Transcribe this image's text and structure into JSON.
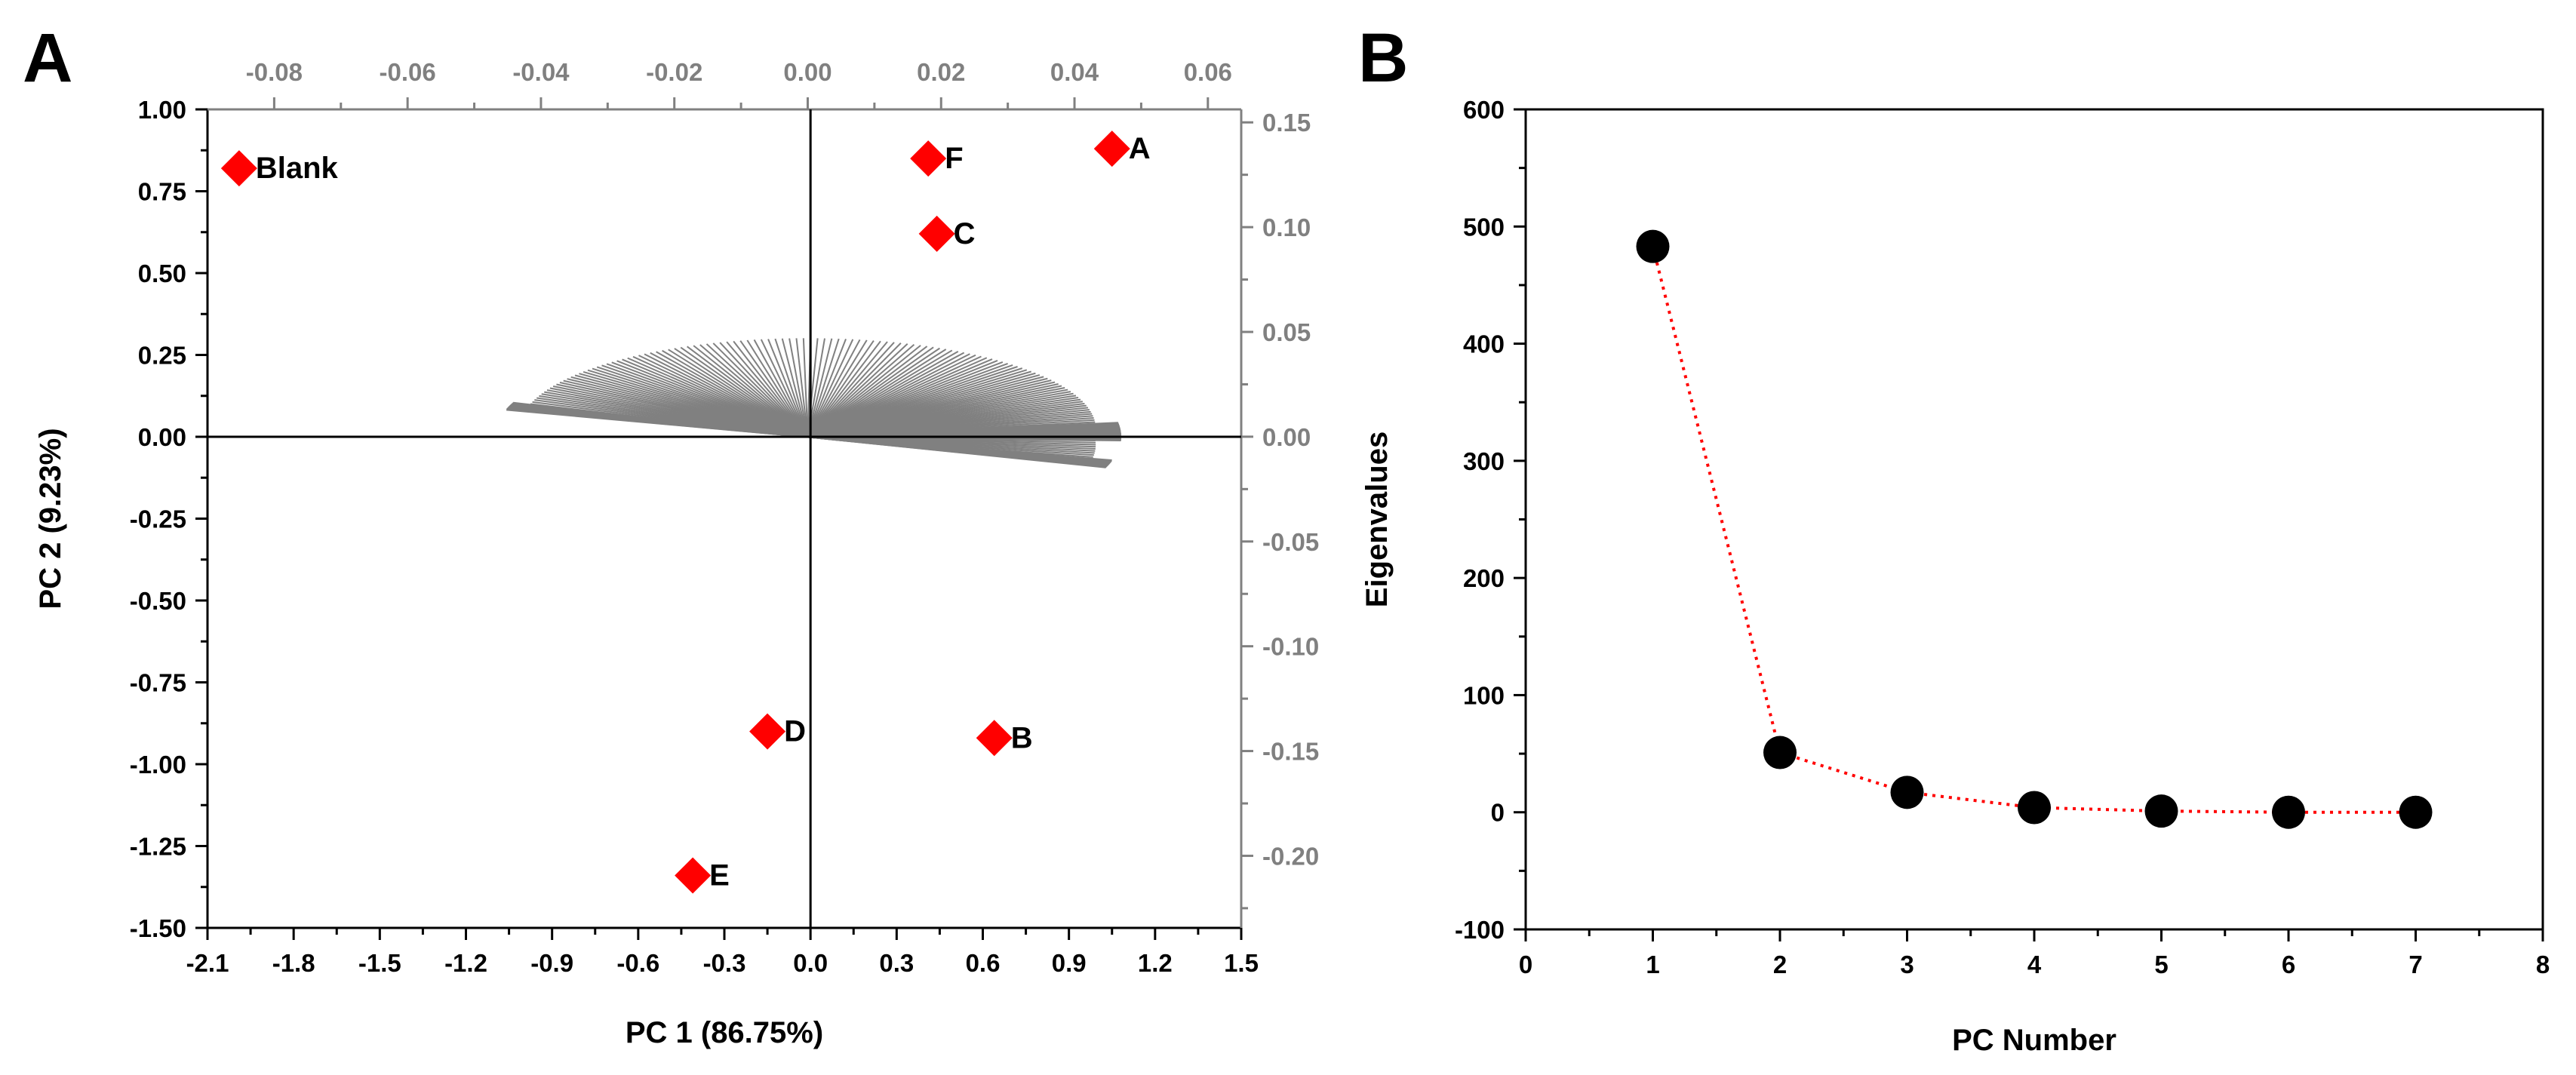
{
  "panel_labels": [
    "A",
    "B"
  ],
  "chart_data": [
    {
      "panel": "A",
      "type": "scatter",
      "subtype": "PCA biplot (scores + loadings)",
      "xlabel": "PC 1 (86.75%)",
      "ylabel": "PC 2 (9.23%)",
      "xlim": [
        -2.1,
        1.5
      ],
      "ylim": [
        -1.5,
        1.0
      ],
      "x_ticks": [
        "-2.1",
        "-1.8",
        "-1.5",
        "-1.2",
        "-0.9",
        "-0.6",
        "-0.3",
        "0.0",
        "0.3",
        "0.6",
        "0.9",
        "1.2",
        "1.5"
      ],
      "y_ticks": [
        "1.00",
        "0.75",
        "0.50",
        "0.25",
        "0.00",
        "-0.25",
        "-0.50",
        "-0.75",
        "-1.00",
        "-1.25",
        "-1.50"
      ],
      "top_axis_ticks": [
        "-0.08",
        "-0.06",
        "-0.04",
        "-0.02",
        "0.00",
        "0.02",
        "0.04",
        "0.06"
      ],
      "right_axis_ticks": [
        "0.15",
        "0.10",
        "0.05",
        "0.00",
        "-0.05",
        "-0.10",
        "-0.15",
        "-0.20"
      ],
      "top_axis_lim": [
        -0.09,
        0.065
      ],
      "right_axis_lim": [
        -0.2344,
        0.1562
      ],
      "scores": [
        {
          "label": "Blank",
          "x": -1.99,
          "y": 0.82
        },
        {
          "label": "A",
          "x": 1.05,
          "y": 0.88
        },
        {
          "label": "F",
          "x": 0.41,
          "y": 0.85
        },
        {
          "label": "C",
          "x": 0.44,
          "y": 0.62
        },
        {
          "label": "D",
          "x": -0.15,
          "y": -0.9
        },
        {
          "label": "B",
          "x": 0.64,
          "y": -0.92
        },
        {
          "label": "E",
          "x": -0.41,
          "y": -1.34
        }
      ],
      "loadings": {
        "count": 140,
        "start_angle_deg": 162,
        "end_angle_deg": -18,
        "radius_min": 0.043,
        "radius_max": 0.047,
        "color": "#808080",
        "dense_fans_deg": [
          [
            160,
            164
          ],
          [
            -2,
            8
          ],
          [
            -14,
            -18
          ]
        ]
      },
      "marker_color": "#ff0000",
      "marker": "diamond"
    },
    {
      "panel": "B",
      "type": "line",
      "subtype": "scree plot",
      "xlabel": "PC Number",
      "ylabel": "Eigenvalues",
      "xlim": [
        0,
        8
      ],
      "ylim": [
        -100,
        600
      ],
      "x_ticks": [
        "0",
        "1",
        "2",
        "3",
        "4",
        "5",
        "6",
        "7",
        "8"
      ],
      "y_ticks": [
        "600",
        "500",
        "400",
        "300",
        "200",
        "100",
        "0",
        "-100"
      ],
      "x": [
        1,
        2,
        3,
        4,
        5,
        6,
        7
      ],
      "y": [
        483,
        51,
        17,
        4,
        1,
        0,
        0
      ],
      "line_color": "#ff0000",
      "line_style": "dotted",
      "marker_color": "#000000",
      "marker": "circle"
    }
  ]
}
